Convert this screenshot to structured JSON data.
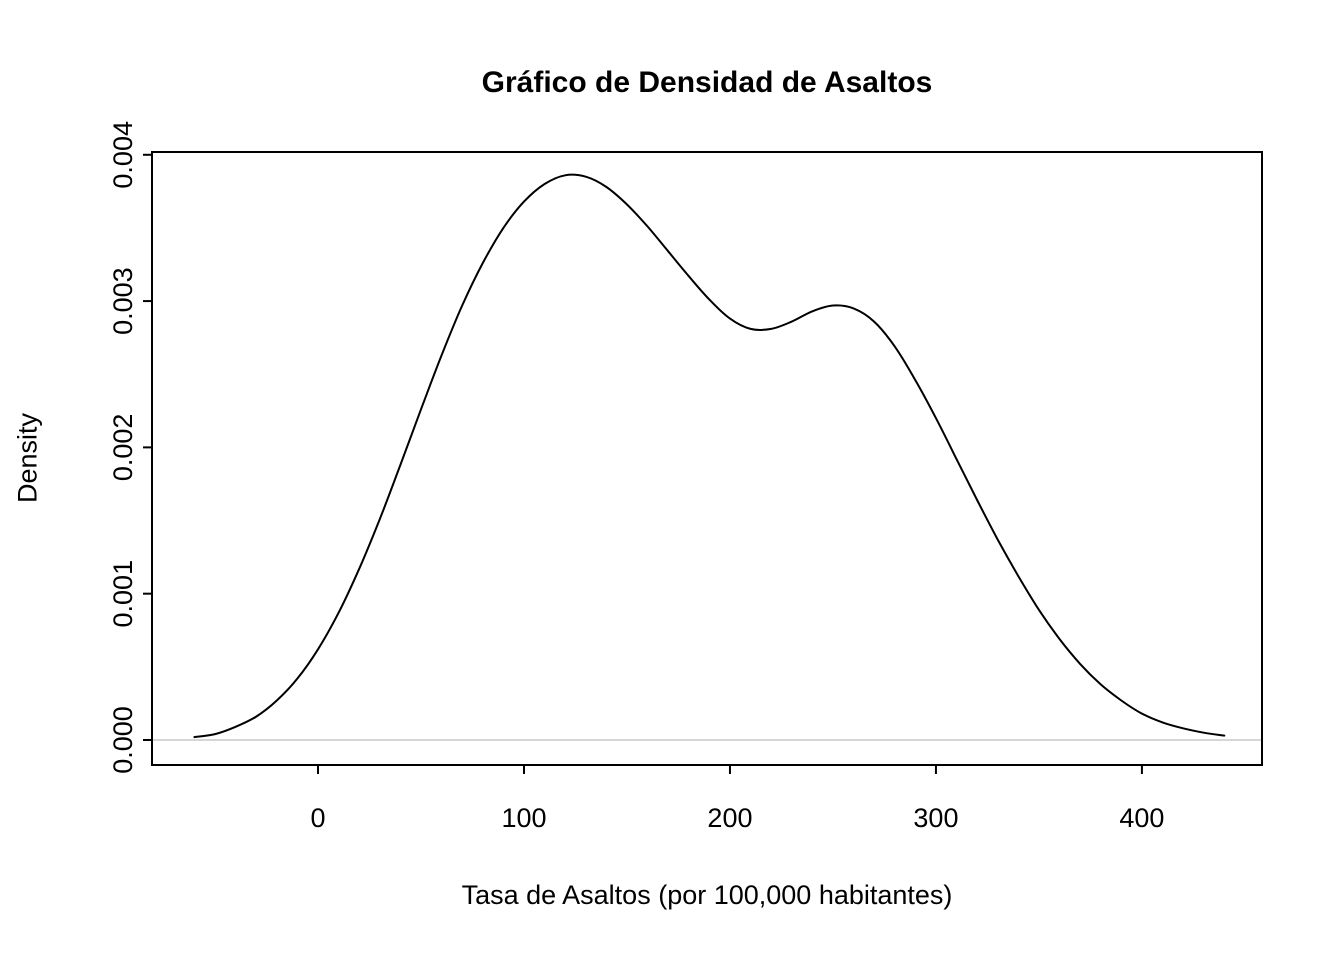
{
  "chart_data": {
    "type": "line",
    "subtype": "kernel-density",
    "title": "Gráfico de Densidad de Asaltos",
    "xlabel": "Tasa de Asaltos (por 100,000 habitantes)",
    "ylabel": "Density",
    "xlim": [
      -80.6,
      458.3
    ],
    "ylim": [
      -0.000171,
      0.004019
    ],
    "xticks": [
      0,
      100,
      200,
      300,
      400
    ],
    "xtick_labels": [
      "0",
      "100",
      "200",
      "300",
      "400"
    ],
    "yticks": [
      0,
      0.001,
      0.002,
      0.003,
      0.004
    ],
    "ytick_labels": [
      "0.000",
      "0.001",
      "0.002",
      "0.003",
      "0.004"
    ],
    "grid": false,
    "legend": "none",
    "line_color": "#000000",
    "zero_line_color": "#d6d6d6",
    "box_color": "#000000",
    "series": [
      {
        "name": "density-estimate",
        "x": [
          -60,
          -50,
          -40,
          -30,
          -20,
          -10,
          0,
          10,
          20,
          30,
          40,
          50,
          60,
          70,
          80,
          90,
          100,
          110,
          120,
          130,
          140,
          150,
          160,
          170,
          180,
          190,
          200,
          210,
          220,
          230,
          240,
          250,
          260,
          270,
          280,
          290,
          300,
          310,
          320,
          330,
          340,
          350,
          360,
          370,
          380,
          390,
          400,
          410,
          420,
          430,
          440
        ],
        "y": [
          2e-05,
          4e-05,
          9e-05,
          0.00016,
          0.00027,
          0.00042,
          0.00062,
          0.00087,
          0.00117,
          0.00151,
          0.00188,
          0.00226,
          0.00263,
          0.00297,
          0.00326,
          0.0035,
          0.00368,
          0.0038,
          0.00386,
          0.00385,
          0.00378,
          0.00366,
          0.00351,
          0.00334,
          0.00317,
          0.00301,
          0.00288,
          0.00281,
          0.00281,
          0.00286,
          0.00293,
          0.00297,
          0.00295,
          0.00286,
          0.00269,
          0.00246,
          0.0022,
          0.00192,
          0.00164,
          0.00137,
          0.00112,
          0.00089,
          0.00069,
          0.00052,
          0.00038,
          0.00027,
          0.00018,
          0.00012,
          8e-05,
          5e-05,
          3e-05
        ]
      }
    ]
  }
}
